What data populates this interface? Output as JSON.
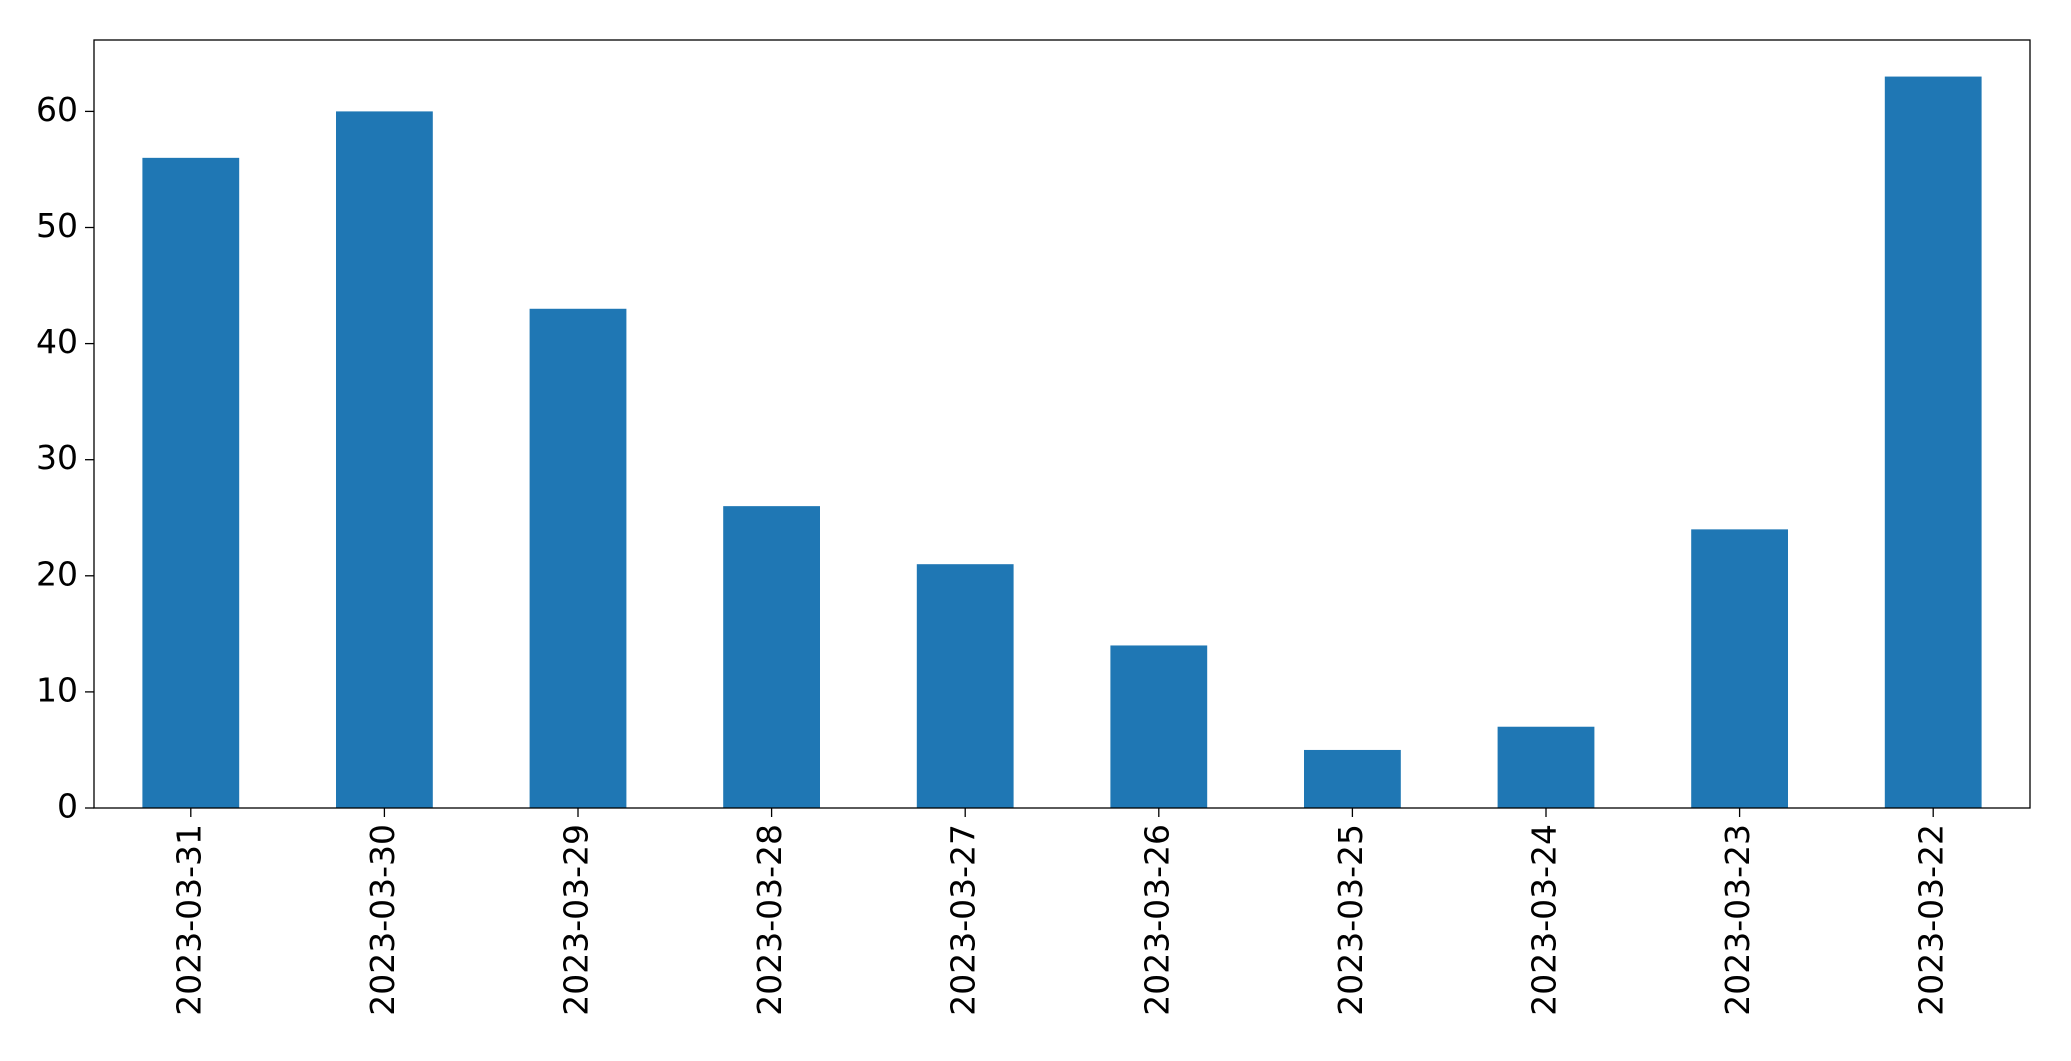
{
  "chart_data": {
    "type": "bar",
    "categories": [
      "2023-03-31",
      "2023-03-30",
      "2023-03-29",
      "2023-03-28",
      "2023-03-27",
      "2023-03-26",
      "2023-03-25",
      "2023-03-24",
      "2023-03-23",
      "2023-03-22"
    ],
    "values": [
      56,
      60,
      43,
      26,
      21,
      14,
      5,
      7,
      24,
      63
    ],
    "color": "#1f77b4",
    "ylim": [
      0,
      66.15
    ],
    "yticks": [
      0,
      10,
      20,
      30,
      40,
      50,
      60
    ],
    "grid": false
  }
}
